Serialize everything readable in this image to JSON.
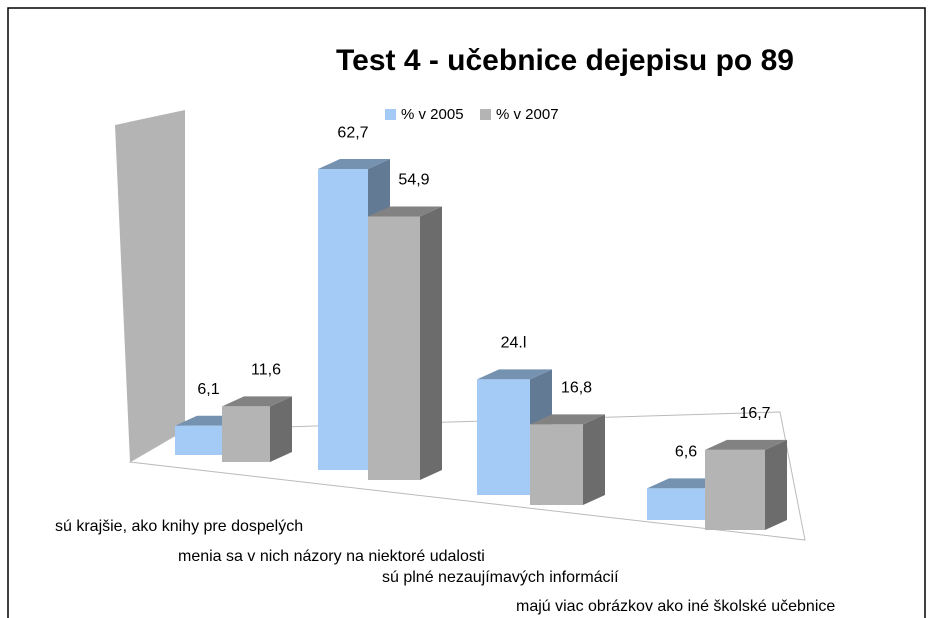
{
  "chart_data": {
    "type": "bar3d",
    "title": "Test 4 - učebnice dejepisu po 89",
    "categories": [
      "sú krajšie, ako knihy pre dospelých",
      "menia sa v nich názory na niektoré udalosti",
      "sú plné nezaujímavých informácií",
      "majú viac obrázkov ako iné školské učebnice"
    ],
    "series": [
      {
        "name": "% v 2005",
        "color": "#a3cbf6",
        "values": [
          6.1,
          62.7,
          24.1,
          6.6
        ],
        "value_labels": [
          "6,1",
          "62,7",
          "24.l",
          "6,6"
        ]
      },
      {
        "name": "% v 2007",
        "color": "#b4b4b4",
        "values": [
          11.6,
          54.9,
          16.8,
          16.7
        ],
        "value_labels": [
          "11,6",
          "54,9",
          "16,8",
          "16,7"
        ]
      }
    ],
    "legend": "top"
  }
}
